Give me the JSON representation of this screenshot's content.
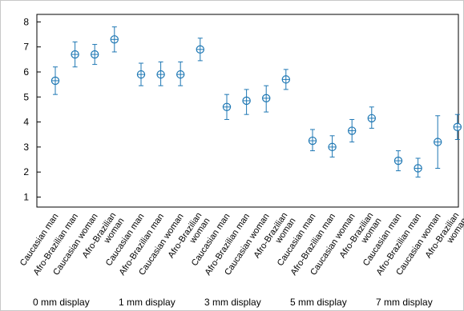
{
  "chart_data": {
    "type": "scatter",
    "subtype": "error-bar",
    "title": "",
    "xlabel": "",
    "ylabel": "",
    "ylim": [
      0.6,
      8.3
    ],
    "yticks": [
      1,
      2,
      3,
      4,
      5,
      6,
      7,
      8
    ],
    "grid": false,
    "legend": "none",
    "colors": {
      "marker": "#1f78b4",
      "frame": "#000000",
      "border": "#c8c8c8"
    },
    "groups": [
      {
        "label": "0 mm display",
        "points": [
          {
            "category": "Caucasian man",
            "mean": 5.65,
            "low": 5.1,
            "high": 6.2
          },
          {
            "category": "Afro-Brazilian man",
            "mean": 6.7,
            "low": 6.2,
            "high": 7.2
          },
          {
            "category": "Caucasian woman",
            "mean": 6.7,
            "low": 6.3,
            "high": 7.1
          },
          {
            "category": "Afro-Brazilian woman",
            "mean": 7.3,
            "low": 6.8,
            "high": 7.8
          }
        ]
      },
      {
        "label": "1 mm display",
        "points": [
          {
            "category": "Caucasian man",
            "mean": 5.9,
            "low": 5.45,
            "high": 6.35
          },
          {
            "category": "Afro-Brazilian man",
            "mean": 5.9,
            "low": 5.45,
            "high": 6.4
          },
          {
            "category": "Caucasian woman",
            "mean": 5.9,
            "low": 5.45,
            "high": 6.4
          },
          {
            "category": "Afro-Brazilian woman",
            "mean": 6.9,
            "low": 6.45,
            "high": 7.35
          }
        ]
      },
      {
        "label": "3 mm display",
        "points": [
          {
            "category": "Caucasian man",
            "mean": 4.6,
            "low": 4.1,
            "high": 5.1
          },
          {
            "category": "Afro-Brazilian man",
            "mean": 4.85,
            "low": 4.3,
            "high": 5.3
          },
          {
            "category": "Caucasian woman",
            "mean": 4.95,
            "low": 4.4,
            "high": 5.45
          },
          {
            "category": "Afro-Brazilian woman",
            "mean": 5.7,
            "low": 5.3,
            "high": 6.1
          }
        ]
      },
      {
        "label": "5 mm display",
        "points": [
          {
            "category": "Caucasian man",
            "mean": 3.25,
            "low": 2.85,
            "high": 3.7
          },
          {
            "category": "Afro-Brazilian man",
            "mean": 3.0,
            "low": 2.6,
            "high": 3.45
          },
          {
            "category": "Caucasian woman",
            "mean": 3.65,
            "low": 3.2,
            "high": 4.1
          },
          {
            "category": "Afro-Brazilian woman",
            "mean": 4.15,
            "low": 3.75,
            "high": 4.6
          }
        ]
      },
      {
        "label": "7 mm display",
        "points": [
          {
            "category": "Caucasian man",
            "mean": 2.45,
            "low": 2.05,
            "high": 2.85
          },
          {
            "category": "Afro-Brazilian man",
            "mean": 2.15,
            "low": 1.8,
            "high": 2.55
          },
          {
            "category": "Caucasian woman",
            "mean": 3.2,
            "low": 2.15,
            "high": 4.25
          },
          {
            "category": "Afro-Brazilian woman",
            "mean": 3.8,
            "low": 3.3,
            "high": 4.3
          }
        ]
      }
    ]
  }
}
